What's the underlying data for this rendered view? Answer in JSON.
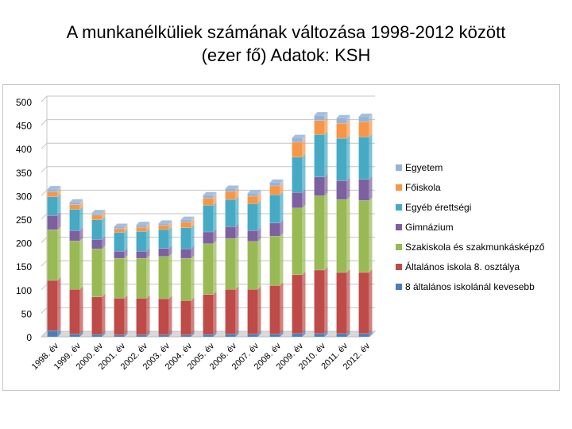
{
  "title": {
    "line1": "A munkanélküliek számának változása 1998-2012 között",
    "line2": "(ezer fő) Adatok: KSH"
  },
  "colors": {
    "8 általános iskolánál kevesebb": "#4a7ebb",
    "Általános iskola 8. osztálya": "#be4b48",
    "Szakiskola és szakmunkásképző": "#98b954",
    "Gimnázium": "#7d60a0",
    "Egyéb érettségi": "#46aac5",
    "Főiskola": "#f79646",
    "Egyetem": "#95b3d7"
  },
  "chart_data": {
    "type": "bar",
    "stacked": true,
    "title": "",
    "xlabel": "",
    "ylabel": "",
    "ylim": [
      0,
      500
    ],
    "yticks": [
      0,
      50,
      100,
      150,
      200,
      250,
      300,
      350,
      400,
      450,
      500
    ],
    "grid": true,
    "legend_position": "right",
    "categories": [
      "1998. év",
      "1999. év",
      "2000. év",
      "2001. év",
      "2002. év",
      "2003. év",
      "2004. év",
      "2005. év",
      "2006. év",
      "2007. év",
      "2008. év",
      "2009. év",
      "2010. év",
      "2011. év",
      "2012. év"
    ],
    "series": [
      {
        "name": "8 általános iskolánál kevesebb",
        "values": [
          13,
          6,
          5,
          4,
          4,
          4,
          4,
          5,
          6,
          6,
          6,
          7,
          7,
          7,
          7
        ]
      },
      {
        "name": "Általános iskola 8. osztálya",
        "values": [
          107,
          95,
          80,
          78,
          78,
          77,
          73,
          85,
          95,
          95,
          103,
          125,
          135,
          130,
          130
        ]
      },
      {
        "name": "Szakiskola és szakmunkásképző",
        "values": [
          108,
          103,
          102,
          85,
          85,
          90,
          90,
          108,
          108,
          102,
          105,
          142,
          158,
          155,
          153
        ]
      },
      {
        "name": "Gimnázium",
        "values": [
          30,
          22,
          20,
          15,
          15,
          17,
          20,
          25,
          25,
          23,
          28,
          33,
          40,
          40,
          45
        ]
      },
      {
        "name": "Egyéb érettségi",
        "values": [
          40,
          45,
          42,
          40,
          42,
          40,
          45,
          57,
          58,
          57,
          60,
          75,
          90,
          90,
          90
        ]
      },
      {
        "name": "Főiskola",
        "values": [
          10,
          10,
          10,
          8,
          9,
          9,
          12,
          15,
          17,
          16,
          19,
          32,
          30,
          32,
          32
        ]
      },
      {
        "name": "Egyetem",
        "values": [
          6,
          5,
          4,
          4,
          5,
          4,
          5,
          6,
          6,
          6,
          7,
          9,
          11,
          11,
          11
        ]
      }
    ]
  }
}
